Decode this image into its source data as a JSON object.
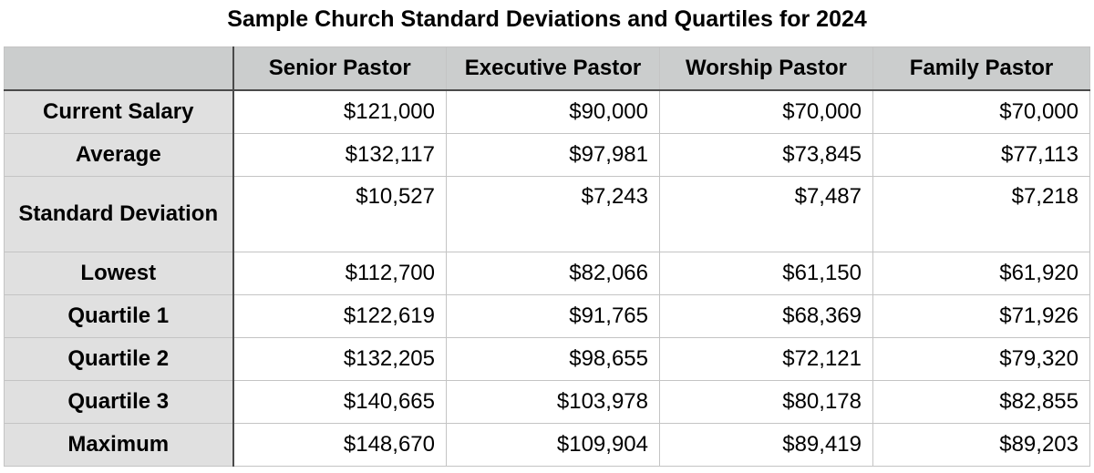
{
  "chart_data": {
    "type": "table",
    "title": "Sample Church Standard Deviations and Quartiles for 2024",
    "columns": [
      "",
      "Senior Pastor",
      "Executive Pastor",
      "Worship Pastor",
      "Family Pastor"
    ],
    "rows": [
      {
        "label": "Current Salary",
        "values": [
          "$121,000",
          "$90,000",
          "$70,000",
          "$70,000"
        ]
      },
      {
        "label": "Average",
        "values": [
          "$132,117",
          "$97,981",
          "$73,845",
          "$77,113"
        ]
      },
      {
        "label": "Standard Deviation",
        "values": [
          "$10,527",
          "$7,243",
          "$7,487",
          "$7,218"
        ]
      },
      {
        "label": "Lowest",
        "values": [
          "$112,700",
          "$82,066",
          "$61,150",
          "$61,920"
        ]
      },
      {
        "label": "Quartile 1",
        "values": [
          "$122,619",
          "$91,765",
          "$68,369",
          "$71,926"
        ]
      },
      {
        "label": "Quartile 2",
        "values": [
          "$132,205",
          "$98,655",
          "$72,121",
          "$79,320"
        ]
      },
      {
        "label": "Quartile 3",
        "values": [
          "$140,665",
          "$103,978",
          "$80,178",
          "$82,855"
        ]
      },
      {
        "label": "Maximum",
        "values": [
          "$148,670",
          "$109,904",
          "$89,419",
          "$89,203"
        ]
      }
    ]
  },
  "colors": {
    "header_background": "#cbcdcd",
    "row_label_background": "#e0e0e0",
    "cell_background": "#ffffff",
    "grid_line": "#c4c4c4",
    "divider_line": "#4a4a4a"
  }
}
